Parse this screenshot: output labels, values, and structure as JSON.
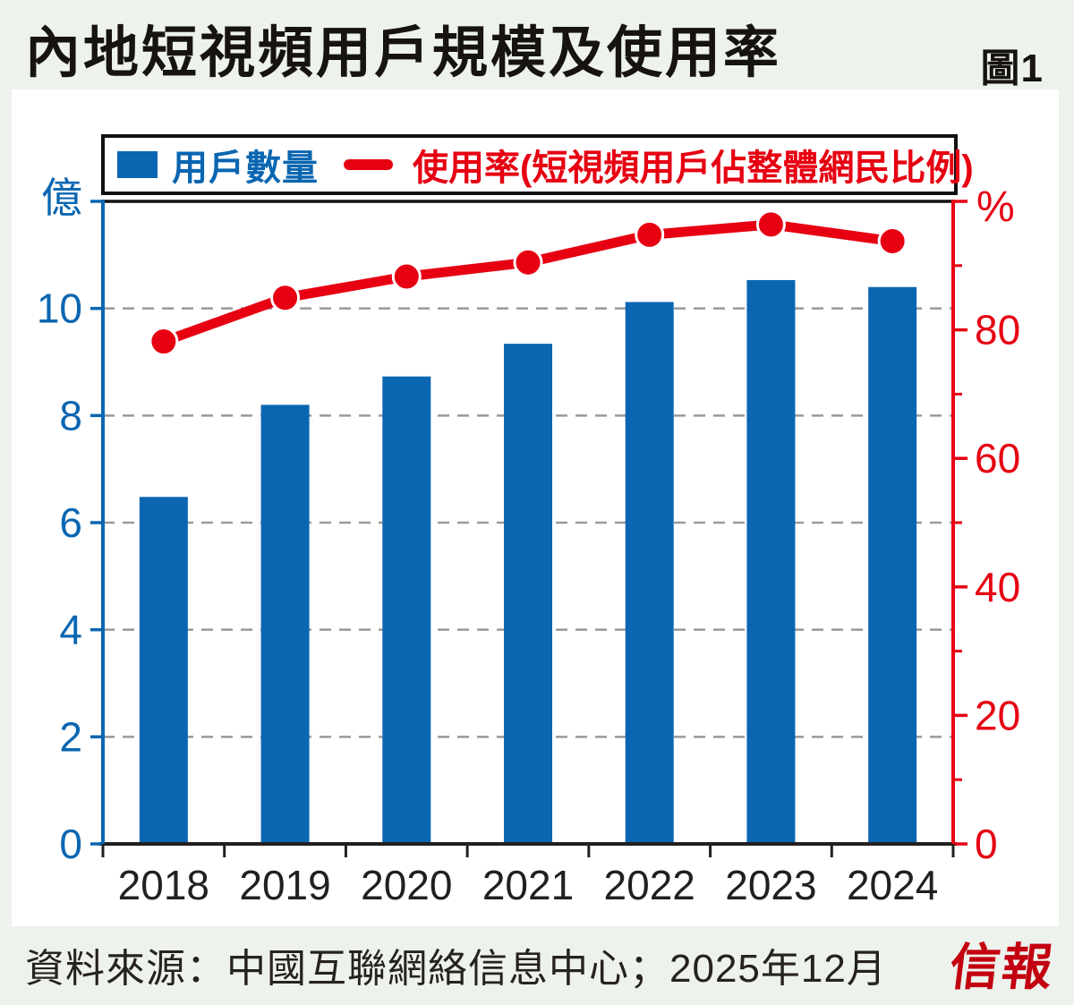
{
  "header": {
    "title": "內地短視頻用戶規模及使用率",
    "figure_label": "圖1"
  },
  "legend": {
    "users_label": "用戶數量",
    "rate_label": "使用率(短視頻用戶佔整體網民比例)"
  },
  "chart_data": {
    "type": "combo-bar-line",
    "categories": [
      "2018",
      "2019",
      "2020",
      "2021",
      "2022",
      "2023",
      "2024"
    ],
    "series": [
      {
        "name": "用戶數量",
        "type": "bar",
        "axis": "left",
        "unit": "億",
        "values": [
          6.48,
          8.2,
          8.73,
          9.34,
          10.12,
          10.53,
          10.4
        ]
      },
      {
        "name": "使用率(短視頻用戶佔整體網民比例)",
        "type": "line",
        "axis": "right",
        "unit": "%",
        "values": [
          78.2,
          85.0,
          88.3,
          90.5,
          94.8,
          96.4,
          93.8
        ]
      }
    ],
    "left_axis": {
      "label": "億",
      "ticks": [
        0,
        2,
        4,
        6,
        8,
        10
      ],
      "min": 0,
      "max": 12
    },
    "right_axis": {
      "label": "%",
      "ticks": [
        0,
        20,
        40,
        60,
        80
      ],
      "minor_step": 10,
      "min": 0,
      "max": 100
    },
    "grid": {
      "show": true,
      "style": "dashed",
      "at_left_values": [
        2,
        4,
        6,
        8,
        10
      ]
    },
    "legend_position": "top",
    "colors": {
      "bar": "#0a66b1",
      "line": "#e60012",
      "grid": "#999999",
      "axis_black": "#231f20",
      "background": "#edf2ec",
      "panel": "#ffffff"
    }
  },
  "footer": {
    "source": "資料來源：中國互聯網絡信息中心；2025年12月",
    "logo_text": "信報"
  }
}
